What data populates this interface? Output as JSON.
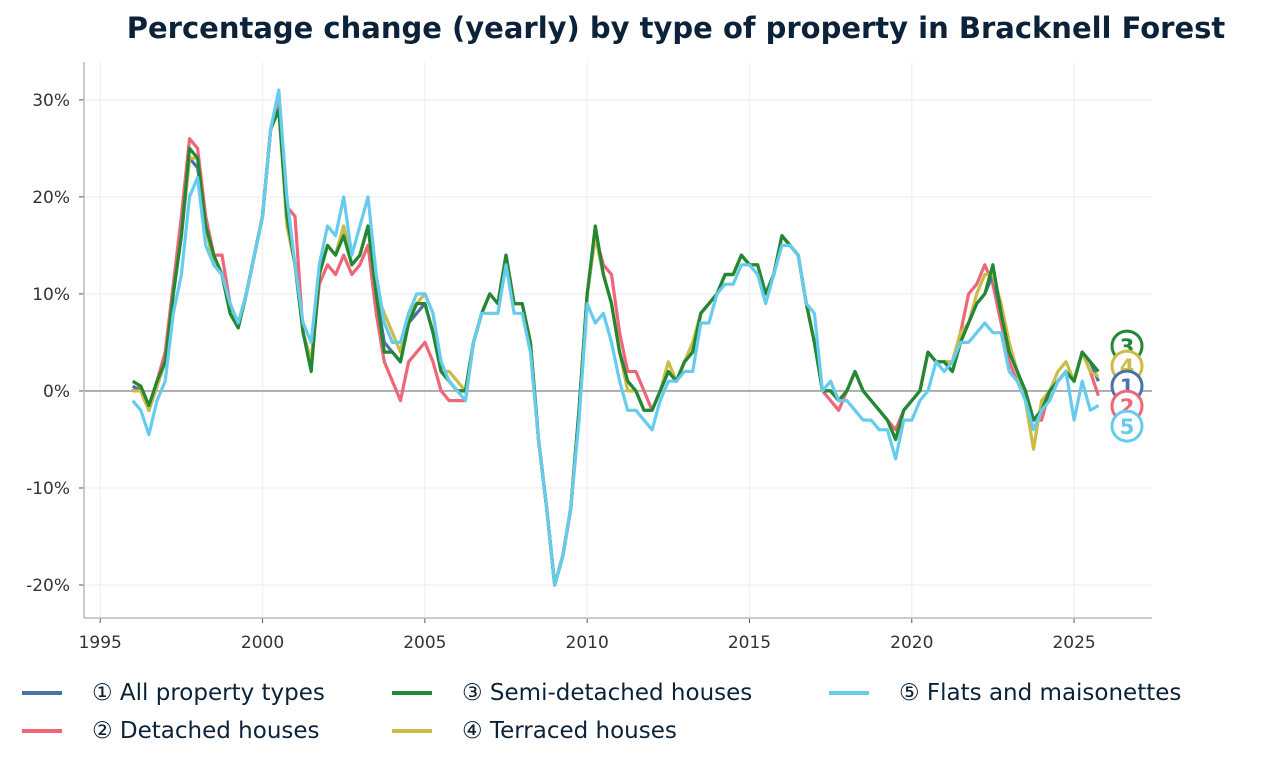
{
  "chart_data": {
    "type": "line",
    "title": "Percentage change (yearly) by type of property in Bracknell Forest",
    "xlabel": "",
    "ylabel": "",
    "xlim": [
      1994.5,
      2027.4
    ],
    "ylim": [
      -23.4,
      33.9
    ],
    "x_ticks": [
      "1995",
      "2000",
      "2005",
      "2010",
      "2015",
      "2020",
      "2025"
    ],
    "y_ticks": [
      "30%",
      "20%",
      "10%",
      "0%",
      "-10%",
      "-20%"
    ],
    "grid": true,
    "legend_position": "bottom",
    "x_start": 1996.0,
    "x_step_years": 0.25,
    "series": [
      {
        "name": "① All property types",
        "label": "1",
        "color": "#4a72a8",
        "values": [
          0.5,
          0,
          -2,
          0.5,
          3,
          10,
          16,
          24,
          23,
          17,
          13,
          12,
          8,
          6.5,
          10,
          14,
          18,
          27,
          29,
          18,
          13,
          6,
          3,
          12,
          15,
          14,
          17,
          13,
          14,
          17,
          10,
          5,
          4,
          3,
          7,
          8,
          9,
          6,
          2,
          1,
          0,
          0,
          5,
          8,
          10,
          9,
          14,
          9,
          9,
          5,
          -5,
          -12,
          -20,
          -17,
          -12,
          -2,
          10,
          16,
          12,
          9,
          4,
          1,
          0,
          -2,
          -2,
          0,
          2,
          1,
          3,
          4,
          8,
          9,
          10,
          12,
          12,
          14,
          13,
          13,
          10,
          12,
          16,
          15,
          14,
          9,
          5,
          0,
          0,
          -1,
          0,
          2,
          0,
          -1,
          -2,
          -3,
          -5,
          -2,
          -1,
          0,
          4,
          3,
          3,
          2,
          5,
          7,
          9,
          10,
          12,
          8,
          4,
          2,
          0,
          -3,
          -2,
          0,
          1,
          2,
          1,
          4,
          3,
          1
        ]
      },
      {
        "name": "② Detached houses",
        "label": "2",
        "color": "#ee6677",
        "values": [
          0,
          0.5,
          -2,
          1,
          4,
          11,
          18,
          26,
          25,
          18,
          14,
          14,
          9,
          7,
          10,
          14,
          18,
          27,
          30,
          19,
          18,
          6,
          3,
          11,
          13,
          12,
          14,
          12,
          13,
          15,
          8,
          3,
          1,
          -1,
          3,
          4,
          5,
          3,
          0,
          -1,
          -1,
          -1,
          5,
          8,
          10,
          9,
          14,
          9,
          9,
          5,
          -5,
          -12,
          -20,
          -17,
          -12,
          -2,
          10,
          16,
          13,
          12,
          6,
          2,
          2,
          0,
          -2,
          0,
          2,
          1,
          3,
          4,
          8,
          9,
          10,
          12,
          12,
          14,
          13,
          13,
          10,
          12,
          16,
          15,
          14,
          9,
          5,
          0,
          -1,
          -2,
          0,
          2,
          0,
          -1,
          -2,
          -3,
          -4,
          -2,
          -1,
          0,
          4,
          3,
          3,
          3,
          6,
          10,
          11,
          13,
          11,
          7,
          3,
          1,
          0,
          -3,
          -3,
          0,
          1,
          2,
          1,
          4,
          2,
          -0.5
        ]
      },
      {
        "name": "③ Semi-detached houses",
        "label": "3",
        "color": "#228833",
        "values": [
          1,
          0.5,
          -1.5,
          1,
          3,
          10,
          16,
          25,
          24,
          17,
          14,
          12,
          8,
          6.5,
          10,
          14,
          18,
          27,
          29,
          18,
          13,
          6,
          2,
          12,
          15,
          14,
          16,
          13,
          14,
          17,
          10,
          4,
          4,
          3,
          7,
          9,
          9,
          6,
          2,
          1,
          0,
          0,
          5,
          8,
          10,
          9,
          14,
          9,
          9,
          5,
          -5,
          -12,
          -20,
          -17,
          -12,
          -2,
          10,
          17,
          12,
          9,
          4,
          1,
          0,
          -2,
          -2,
          0,
          2,
          1,
          3,
          4,
          8,
          9,
          10,
          12,
          12,
          14,
          13,
          13,
          10,
          12,
          16,
          15,
          14,
          9,
          5,
          0,
          0,
          -1,
          0,
          2,
          0,
          -1,
          -2,
          -3,
          -5,
          -2,
          -1,
          0,
          4,
          3,
          3,
          2,
          5,
          7,
          9,
          10,
          13,
          8,
          4,
          2,
          0,
          -3,
          -2,
          0,
          1,
          2,
          1,
          4,
          3,
          2
        ]
      },
      {
        "name": "④ Terraced houses",
        "label": "4",
        "color": "#ccbb44",
        "values": [
          0,
          0,
          -2,
          0.5,
          3,
          10,
          16,
          24,
          24,
          17,
          13,
          12,
          8,
          6.5,
          10,
          14,
          18,
          27,
          29,
          17,
          13,
          6,
          3,
          12,
          15,
          14,
          17,
          13,
          14,
          17,
          10,
          8,
          6,
          4,
          8,
          9,
          10,
          8,
          2,
          2,
          1,
          0,
          5,
          8,
          10,
          9,
          14,
          9,
          9,
          5,
          -5,
          -12,
          -20,
          -17,
          -12,
          -2,
          10,
          16,
          12,
          9,
          4,
          0,
          0,
          -2,
          -2,
          0,
          3,
          1,
          3,
          5,
          8,
          9,
          10,
          12,
          12,
          14,
          13,
          13,
          10,
          12,
          16,
          15,
          14,
          9,
          5,
          0,
          0,
          -1,
          0,
          2,
          0,
          -1,
          -2,
          -3,
          -5,
          -2,
          -1,
          0,
          4,
          3,
          3,
          3,
          6,
          7,
          10,
          12,
          12,
          9,
          5,
          2,
          -1,
          -6,
          -1,
          0,
          2,
          3,
          1,
          4,
          2,
          1.5
        ]
      },
      {
        "name": "⑤ Flats and maisonettes",
        "label": "5",
        "color": "#66ccee",
        "values": [
          -1,
          -2,
          -4.5,
          -1,
          1,
          8,
          12,
          20,
          22,
          15,
          13,
          12,
          9,
          7,
          10,
          14,
          18,
          27,
          31,
          20,
          13,
          7,
          5,
          13,
          17,
          16,
          20,
          14,
          17,
          20,
          12,
          7,
          5,
          5,
          8,
          10,
          10,
          8,
          3,
          1,
          0,
          -1,
          5,
          8,
          8,
          8,
          13,
          8,
          8,
          4,
          -5,
          -12,
          -20,
          -17,
          -12,
          -3,
          9,
          7,
          8,
          5,
          1,
          -2,
          -2,
          -3,
          -4,
          -1,
          1,
          1,
          2,
          2,
          7,
          7,
          10,
          11,
          11,
          13,
          13,
          12,
          9,
          12,
          15,
          15,
          14,
          9,
          8,
          0,
          1,
          -1,
          -1,
          -2,
          -3,
          -3,
          -4,
          -4,
          -7,
          -3,
          -3,
          -1,
          0,
          3,
          2,
          3,
          5,
          5,
          6,
          7,
          6,
          6,
          2,
          1,
          -1,
          -4,
          -2,
          -1,
          1,
          2,
          -3,
          1,
          -2,
          -1.5
        ]
      }
    ]
  }
}
